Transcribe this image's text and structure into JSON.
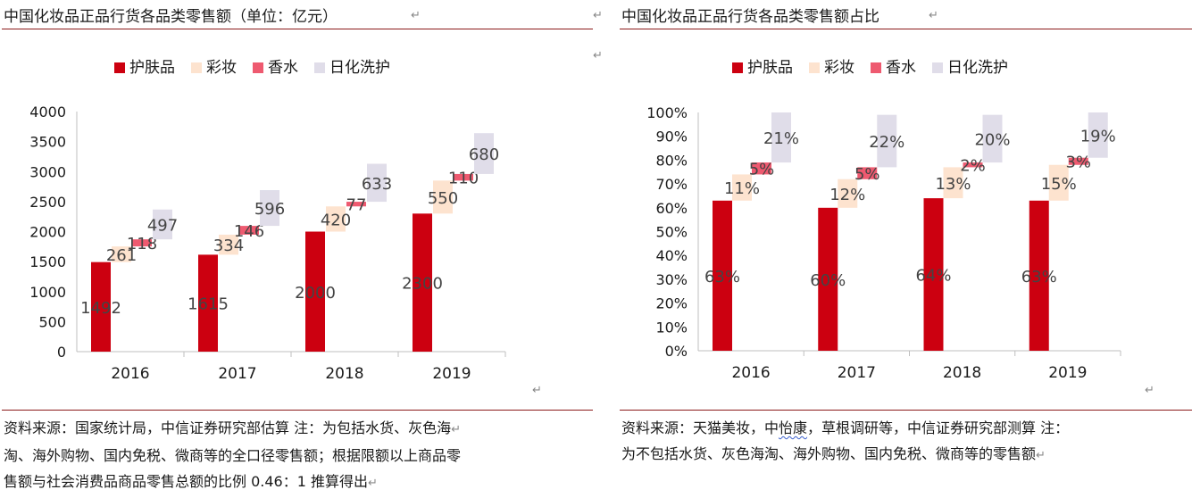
{
  "colors": {
    "skin": "#cc0010",
    "makeup": "#fde3cf",
    "perfume": "#ee5a70",
    "daily": "#e0dde9",
    "rule": "#8b1a1a"
  },
  "return_mark": "↵",
  "left": {
    "title": "中国化妆品正品行货各品类零售额（单位：亿元）",
    "source_lines": [
      "资料来源：国家统计局，中信证券研究部估算 注：为包括水货、灰色海",
      "淘、海外购物、国内免税、微商等的全口径零售额；根据限额以上商品零",
      "售额与社会消费品商品零售总额的比例 0.46：1 推算得出"
    ]
  },
  "right": {
    "title": "中国化妆品正品行货各品类零售额占比",
    "source_line1": {
      "before": "资料来源：天猫美妆，中",
      "wavy": "怡康",
      "after": "，草根调研等，中信证券研究部测算 注："
    },
    "source_line2": "为不包括水货、灰色海淘、海外购物、国内免税、微商等的零售额"
  },
  "chart_data": [
    {
      "type": "bar",
      "title": "中国化妆品正品行货各品类零售额（单位：亿元）",
      "categories": [
        "2016",
        "2017",
        "2018",
        "2019"
      ],
      "series": [
        {
          "name": "护肤品",
          "values": [
            1492,
            1615,
            2000,
            2300
          ]
        },
        {
          "name": "彩妆",
          "values": [
            261,
            334,
            420,
            550
          ]
        },
        {
          "name": "香水",
          "values": [
            118,
            146,
            77,
            110
          ]
        },
        {
          "name": "日化洗护",
          "values": [
            497,
            596,
            633,
            680
          ]
        }
      ],
      "value_labels": [
        [
          "1492",
          "1615",
          "2000",
          "2300"
        ],
        [
          "261",
          "334",
          "420",
          "550"
        ],
        [
          "118",
          "146",
          "77",
          "110"
        ],
        [
          "497",
          "596",
          "633",
          "680"
        ]
      ],
      "stacking": "waterfall",
      "ylim": [
        0,
        4000
      ],
      "yticks": [
        0,
        500,
        1000,
        1500,
        2000,
        2500,
        3000,
        3500,
        4000
      ],
      "ytick_labels": [
        "0",
        "500",
        "1000",
        "1500",
        "2000",
        "2500",
        "3000",
        "3500",
        "4000"
      ],
      "legend_position": "top",
      "grid": false
    },
    {
      "type": "bar",
      "title": "中国化妆品正品行货各品类零售额占比",
      "categories": [
        "2016",
        "2017",
        "2018",
        "2019"
      ],
      "series": [
        {
          "name": "护肤品",
          "values": [
            63,
            60,
            64,
            63
          ]
        },
        {
          "name": "彩妆",
          "values": [
            11,
            12,
            13,
            15
          ]
        },
        {
          "name": "香水",
          "values": [
            5,
            5,
            2,
            3
          ]
        },
        {
          "name": "日化洗护",
          "values": [
            21,
            22,
            20,
            19
          ]
        }
      ],
      "value_labels": [
        [
          "63%",
          "60%",
          "64%",
          "63%"
        ],
        [
          "11%",
          "12%",
          "13%",
          "15%"
        ],
        [
          "5%",
          "5%",
          "2%",
          "3%"
        ],
        [
          "21%",
          "22%",
          "20%",
          "19%"
        ]
      ],
      "stacking": "waterfall",
      "ylim": [
        0,
        100
      ],
      "yticks": [
        0,
        10,
        20,
        30,
        40,
        50,
        60,
        70,
        80,
        90,
        100
      ],
      "ytick_labels": [
        "0%",
        "10%",
        "20%",
        "30%",
        "40%",
        "50%",
        "60%",
        "70%",
        "80%",
        "90%",
        "100%"
      ],
      "legend_position": "top",
      "grid": false
    }
  ]
}
